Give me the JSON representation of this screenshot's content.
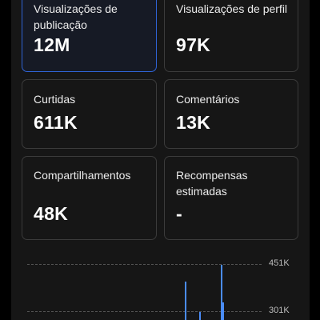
{
  "metrics": [
    {
      "label": "Visualizações de publicação",
      "value": "12M",
      "selected": true
    },
    {
      "label": "Visualizações de perfil",
      "value": "97K",
      "selected": false
    },
    {
      "label": "Curtidas",
      "value": "611K",
      "selected": false
    },
    {
      "label": "Comentários",
      "value": "13K",
      "selected": false
    },
    {
      "label": "Compartilhamentos",
      "value": "48K",
      "selected": false
    },
    {
      "label": "Recompensas estimadas",
      "value": "-",
      "selected": false
    }
  ],
  "chart": {
    "y_ticks": [
      "451K",
      "301K"
    ],
    "accent": "#4a8cf7"
  }
}
